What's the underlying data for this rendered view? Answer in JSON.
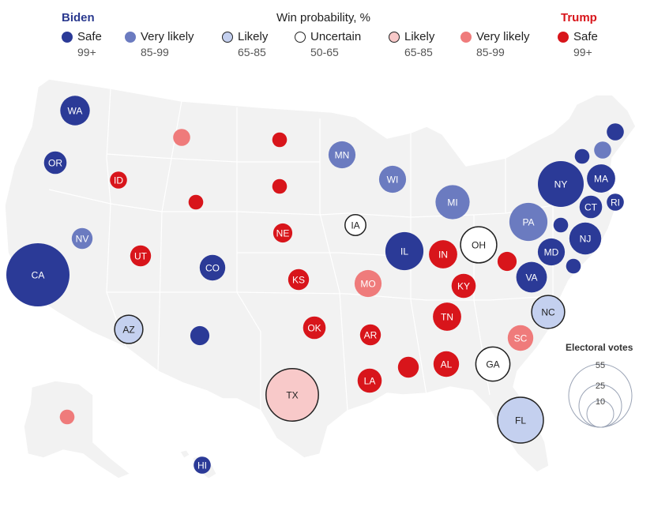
{
  "header": {
    "biden": "Biden",
    "trump": "Trump",
    "title": "Win probability, %"
  },
  "legend": [
    {
      "label": "Safe",
      "range": "99+",
      "category": "biden-safe"
    },
    {
      "label": "Very likely",
      "range": "85-99",
      "category": "biden-very-likely"
    },
    {
      "label": "Likely",
      "range": "65-85",
      "category": "biden-likely"
    },
    {
      "label": "Uncertain",
      "range": "50-65",
      "category": "uncertain"
    },
    {
      "label": "Likely",
      "range": "65-85",
      "category": "trump-likely"
    },
    {
      "label": "Very likely",
      "range": "85-99",
      "category": "trump-very-likely"
    },
    {
      "label": "Safe",
      "range": "99+",
      "category": "trump-safe"
    }
  ],
  "colors": {
    "biden-safe": "#2b3a97",
    "biden-very-likely": "#6b7bc0",
    "biden-likely": "#c4d0ef",
    "uncertain": "#ffffff",
    "trump-likely": "#f8c9c9",
    "trump-very-likely": "#ef7b7b",
    "trump-safe": "#d8151b",
    "map-fill": "#f2f2f2",
    "map-stroke": "#ffffff"
  },
  "size_legend": {
    "title": "Electoral votes",
    "values": [
      "55",
      "25",
      "10"
    ]
  },
  "states": [
    {
      "label": "WA",
      "ev": 12,
      "category": "biden-safe"
    },
    {
      "label": "OR",
      "ev": 7,
      "category": "biden-safe"
    },
    {
      "label": "CA",
      "ev": 55,
      "category": "biden-safe"
    },
    {
      "label": "NV",
      "ev": 6,
      "category": "biden-very-likely"
    },
    {
      "label": "",
      "ev": 4,
      "category": "trump-very-likely"
    },
    {
      "label": "ID",
      "ev": 4,
      "category": "trump-safe"
    },
    {
      "label": "UT",
      "ev": 6,
      "category": "trump-safe"
    },
    {
      "label": "AZ",
      "ev": 11,
      "category": "biden-likely"
    },
    {
      "label": "",
      "ev": 3,
      "category": "trump-safe"
    },
    {
      "label": "CO",
      "ev": 9,
      "category": "biden-safe"
    },
    {
      "label": "",
      "ev": 5,
      "category": "biden-safe"
    },
    {
      "label": "",
      "ev": 3,
      "category": "trump-safe"
    },
    {
      "label": "",
      "ev": 3,
      "category": "trump-safe"
    },
    {
      "label": "NE",
      "ev": 5,
      "category": "trump-safe"
    },
    {
      "label": "KS",
      "ev": 6,
      "category": "trump-safe"
    },
    {
      "label": "OK",
      "ev": 7,
      "category": "trump-safe"
    },
    {
      "label": "TX",
      "ev": 38,
      "category": "trump-likely"
    },
    {
      "label": "MN",
      "ev": 10,
      "category": "biden-very-likely"
    },
    {
      "label": "IA",
      "ev": 6,
      "category": "uncertain"
    },
    {
      "label": "MO",
      "ev": 10,
      "category": "trump-very-likely"
    },
    {
      "label": "AR",
      "ev": 6,
      "category": "trump-safe"
    },
    {
      "label": "LA",
      "ev": 8,
      "category": "trump-safe"
    },
    {
      "label": "WI",
      "ev": 10,
      "category": "biden-very-likely"
    },
    {
      "label": "IL",
      "ev": 20,
      "category": "biden-safe"
    },
    {
      "label": "MI",
      "ev": 16,
      "category": "biden-very-likely"
    },
    {
      "label": "IN",
      "ev": 11,
      "category": "trump-safe"
    },
    {
      "label": "OH",
      "ev": 18,
      "category": "uncertain"
    },
    {
      "label": "KY",
      "ev": 8,
      "category": "trump-safe"
    },
    {
      "label": "TN",
      "ev": 11,
      "category": "trump-safe"
    },
    {
      "label": "",
      "ev": 6,
      "category": "trump-safe"
    },
    {
      "label": "AL",
      "ev": 9,
      "category": "trump-safe"
    },
    {
      "label": "GA",
      "ev": 16,
      "category": "uncertain"
    },
    {
      "label": "FL",
      "ev": 29,
      "category": "biden-likely"
    },
    {
      "label": "SC",
      "ev": 9,
      "category": "trump-very-likely"
    },
    {
      "label": "NC",
      "ev": 15,
      "category": "biden-likely"
    },
    {
      "label": "VA",
      "ev": 13,
      "category": "biden-safe"
    },
    {
      "label": "",
      "ev": 5,
      "category": "trump-safe"
    },
    {
      "label": "PA",
      "ev": 20,
      "category": "biden-very-likely"
    },
    {
      "label": "NY",
      "ev": 29,
      "category": "biden-safe"
    },
    {
      "label": "NJ",
      "ev": 14,
      "category": "biden-safe"
    },
    {
      "label": "MD",
      "ev": 10,
      "category": "biden-safe"
    },
    {
      "label": "",
      "ev": 3,
      "category": "biden-safe"
    },
    {
      "label": "",
      "ev": 3,
      "category": "biden-safe"
    },
    {
      "label": "CT",
      "ev": 7,
      "category": "biden-safe"
    },
    {
      "label": "RI",
      "ev": 4,
      "category": "biden-safe"
    },
    {
      "label": "MA",
      "ev": 11,
      "category": "biden-safe"
    },
    {
      "label": "",
      "ev": 3,
      "category": "biden-safe"
    },
    {
      "label": "",
      "ev": 4,
      "category": "biden-very-likely"
    },
    {
      "label": "",
      "ev": 4,
      "category": "biden-safe"
    },
    {
      "label": "",
      "ev": 3,
      "category": "trump-very-likely"
    },
    {
      "label": "HI",
      "ev": 4,
      "category": "biden-safe"
    }
  ]
}
